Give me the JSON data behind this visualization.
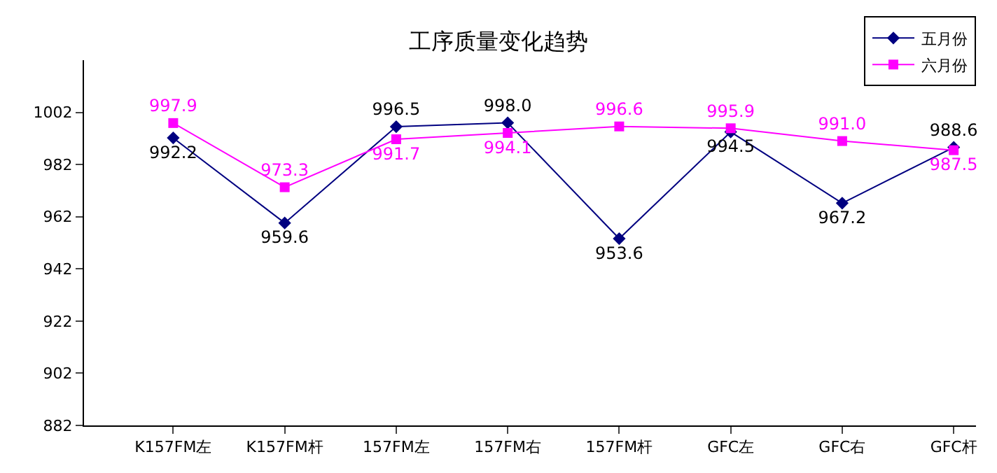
{
  "chart_data": {
    "type": "line",
    "title": "工序质量变化趋势",
    "categories": [
      "K157FM左",
      "K157FM杆",
      "157FM左",
      "157FM右",
      "157FM杆",
      "GFC左",
      "GFC右",
      "GFC杆"
    ],
    "series": [
      {
        "name": "五月份",
        "color": "#000080",
        "marker": "diamond",
        "values": [
          992.2,
          959.6,
          996.5,
          998.0,
          953.6,
          994.5,
          967.2,
          988.6
        ],
        "value_labels": [
          "992.2",
          "959.6",
          "996.5",
          "998.0",
          "953.6",
          "994.5",
          "967.2",
          "988.6"
        ]
      },
      {
        "name": "六月份",
        "color": "#ff00ff",
        "marker": "square",
        "values": [
          997.9,
          973.3,
          991.7,
          994.1,
          996.6,
          995.9,
          991.0,
          987.5
        ],
        "value_labels": [
          "997.9",
          "973.3",
          "991.7",
          "994.1",
          "996.6",
          "995.9",
          "991.0",
          "987.5"
        ]
      }
    ],
    "ylim": [
      882,
      1022
    ],
    "yticks": [
      882,
      902,
      922,
      942,
      962,
      982,
      1002
    ],
    "legend": "top right"
  }
}
